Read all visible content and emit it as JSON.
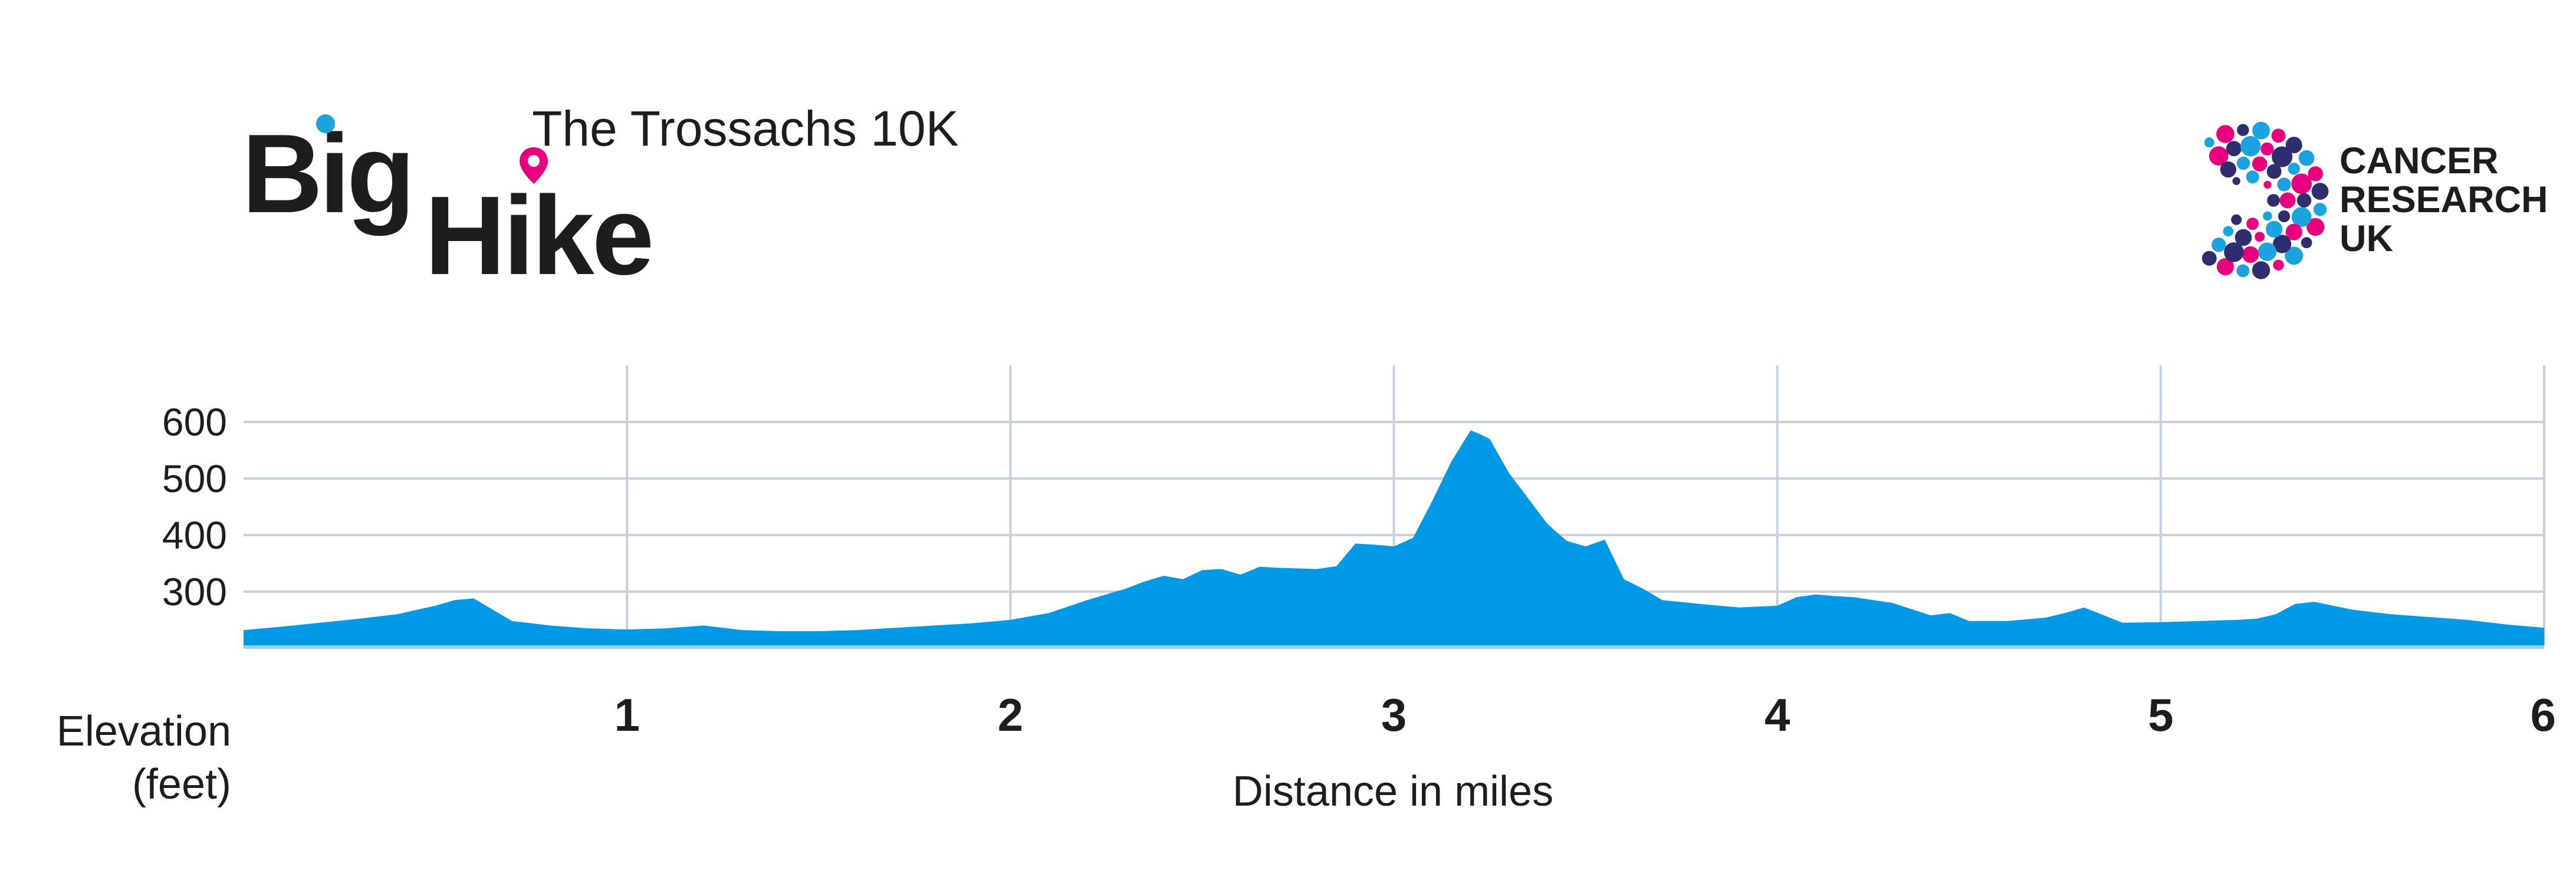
{
  "brand": {
    "word_big": "Big",
    "word_hike": "Hike",
    "route_name": "The Trossachs 10K",
    "sponsor_lines": [
      "CANCER",
      "RESEARCH",
      "UK"
    ]
  },
  "colors": {
    "area_fill": "#0099e6",
    "grid": "#c8d0dd",
    "baseline": "#9ccfee",
    "text": "#1d1d1b",
    "pin": "#e6007e",
    "dot_blue": "#1aa3dc",
    "dot_pink": "#e6007e",
    "dot_navy": "#2e2d6e"
  },
  "icons": {
    "pin": "map-pin-icon",
    "cruk": "cancer-research-uk-logo"
  },
  "chart_data": {
    "type": "area",
    "title": "",
    "xlabel": "Distance in miles",
    "ylabel": "Elevation (feet)",
    "ylabel_lines": [
      "Elevation",
      "(feet)"
    ],
    "xlim": [
      0,
      6
    ],
    "ylim": [
      205,
      700
    ],
    "xticks": [
      1,
      2,
      3,
      4,
      5,
      6
    ],
    "yticks": [
      300,
      400,
      500,
      600
    ],
    "grid": true,
    "series": [
      {
        "name": "Elevation",
        "x": [
          0,
          0.1,
          0.2,
          0.3,
          0.4,
          0.5,
          0.55,
          0.6,
          0.65,
          0.7,
          0.8,
          0.9,
          1.0,
          1.1,
          1.2,
          1.3,
          1.4,
          1.5,
          1.6,
          1.7,
          1.8,
          1.9,
          2.0,
          2.1,
          2.2,
          2.3,
          2.35,
          2.4,
          2.45,
          2.5,
          2.55,
          2.6,
          2.65,
          2.7,
          2.8,
          2.85,
          2.9,
          2.95,
          3.0,
          3.05,
          3.1,
          3.15,
          3.2,
          3.22,
          3.25,
          3.3,
          3.35,
          3.4,
          3.45,
          3.5,
          3.55,
          3.6,
          3.65,
          3.7,
          3.8,
          3.9,
          4.0,
          4.05,
          4.1,
          4.15,
          4.2,
          4.3,
          4.4,
          4.45,
          4.5,
          4.6,
          4.7,
          4.75,
          4.8,
          4.9,
          5.0,
          5.1,
          5.2,
          5.25,
          5.3,
          5.35,
          5.4,
          5.5,
          5.6,
          5.7,
          5.8,
          5.9,
          6.0
        ],
        "y": [
          232,
          238,
          245,
          252,
          260,
          275,
          285,
          288,
          268,
          248,
          240,
          235,
          233,
          235,
          240,
          232,
          230,
          230,
          232,
          236,
          240,
          244,
          250,
          262,
          285,
          305,
          318,
          328,
          322,
          338,
          340,
          330,
          344,
          342,
          340,
          345,
          385,
          383,
          380,
          395,
          460,
          530,
          585,
          580,
          570,
          510,
          465,
          420,
          390,
          380,
          392,
          322,
          305,
          285,
          278,
          272,
          275,
          290,
          295,
          292,
          290,
          280,
          258,
          262,
          248,
          248,
          254,
          262,
          272,
          245,
          246,
          248,
          250,
          252,
          260,
          278,
          282,
          268,
          260,
          255,
          250,
          242,
          236
        ]
      }
    ]
  }
}
